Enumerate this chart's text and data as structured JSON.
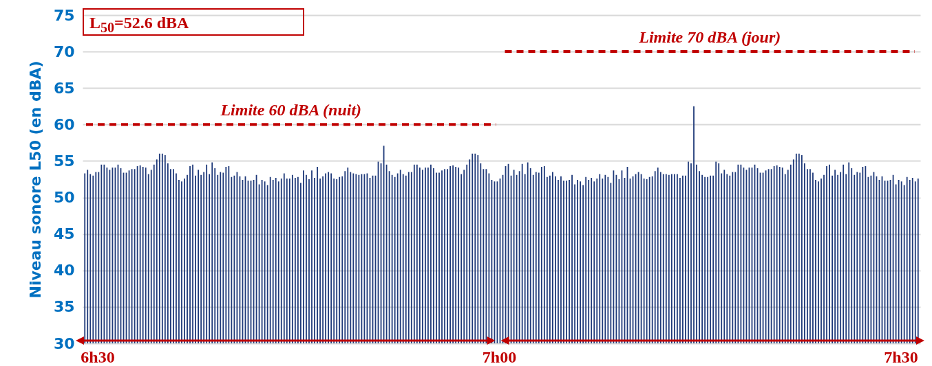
{
  "chart_data": {
    "type": "bar",
    "ylabel": "Niveau sonore L50 (en dBA)",
    "ylim": [
      30,
      75
    ],
    "yticks": [
      30,
      35,
      40,
      45,
      50,
      55,
      60,
      65,
      70,
      75
    ],
    "grid": "y",
    "color": "#1f3a7a",
    "categories": [
      null,
      null,
      null,
      null,
      null,
      null,
      null,
      null,
      null,
      null,
      null,
      null,
      null,
      null,
      null,
      null,
      null,
      null,
      null,
      null,
      null,
      null,
      null,
      null,
      null,
      null,
      null,
      null,
      null,
      null,
      null,
      null,
      null,
      null,
      null,
      null,
      null,
      null,
      null,
      null,
      null,
      null,
      null,
      null,
      null,
      null,
      null,
      null,
      null,
      null,
      null,
      null,
      null,
      null,
      null,
      null,
      null,
      null,
      null,
      null,
      null,
      null,
      null,
      null,
      null,
      null,
      null,
      null,
      null,
      null,
      null,
      null,
      null,
      null,
      null,
      null,
      null,
      null,
      null,
      null,
      null,
      null,
      null,
      null,
      null,
      null,
      null,
      null,
      null,
      null,
      null,
      null,
      null,
      null,
      null,
      null,
      null,
      null,
      null,
      null,
      null,
      null,
      null,
      null,
      null,
      null,
      null,
      null,
      null,
      null,
      null,
      null,
      null,
      null,
      null,
      null,
      null,
      null,
      null,
      null,
      null,
      null,
      null,
      null,
      null,
      null,
      null,
      null,
      null,
      null,
      null,
      null,
      null,
      null,
      null,
      null,
      null,
      null,
      null,
      null,
      null,
      null,
      null,
      null,
      null,
      null,
      null,
      null,
      null,
      null,
      null,
      null,
      null,
      null,
      null,
      null,
      null,
      null,
      null,
      null,
      null,
      null,
      null,
      null,
      null,
      null,
      null,
      null,
      null,
      null,
      null,
      null,
      null,
      null,
      null,
      null,
      null,
      null,
      null,
      null,
      null,
      null,
      null,
      null,
      null,
      null,
      null,
      null,
      null,
      null,
      null,
      null,
      null,
      null,
      null,
      null,
      null,
      null,
      null,
      null,
      null,
      null,
      null,
      null,
      null,
      null,
      null,
      null,
      null,
      null,
      null,
      null,
      null,
      null,
      null,
      null,
      null,
      null,
      null,
      null,
      null,
      null,
      null,
      null,
      null,
      null,
      null,
      null,
      null,
      null,
      null,
      null,
      null,
      null,
      null,
      null,
      null,
      null,
      null,
      null,
      null,
      null,
      null,
      null,
      null,
      null,
      null,
      null,
      null,
      null,
      null,
      null,
      null,
      null,
      null,
      null,
      null,
      null,
      null,
      null,
      null,
      null,
      null,
      null,
      null,
      null,
      null,
      null,
      null,
      null,
      null,
      null,
      null,
      null,
      null,
      null,
      null,
      null,
      null,
      null,
      null,
      null,
      null,
      null,
      null,
      null,
      null,
      null,
      null,
      null,
      null,
      null,
      null,
      null,
      null,
      null,
      null,
      null,
      null,
      null,
      null,
      null
    ],
    "values": [
      53.3,
      53.8,
      53.2,
      53.0,
      53.5,
      53.5,
      54.5,
      54.5,
      54.1,
      53.8,
      54.1,
      54.1,
      54.5,
      54.0,
      53.4,
      53.4,
      53.7,
      53.9,
      53.9,
      54.3,
      54.4,
      54.2,
      54.1,
      53.2,
      53.8,
      54.5,
      55.2,
      56.0,
      56.0,
      55.8,
      54.7,
      53.9,
      53.9,
      53.3,
      52.4,
      52.2,
      52.6,
      53.1,
      54.3,
      54.5,
      53.0,
      53.8,
      53.1,
      53.5,
      54.5,
      53.2,
      54.8,
      54.0,
      53.1,
      53.5,
      53.4,
      54.2,
      54.3,
      52.8,
      53.0,
      53.5,
      52.9,
      52.4,
      52.9,
      52.3,
      52.3,
      52.4,
      53.1,
      51.8,
      52.4,
      52.2,
      51.7,
      52.8,
      52.4,
      52.7,
      52.2,
      52.6,
      53.3,
      52.6,
      52.6,
      53.1,
      52.7,
      52.8,
      52.0,
      53.7,
      53.1,
      52.5,
      53.7,
      52.7,
      54.2,
      52.6,
      52.9,
      53.3,
      53.5,
      53.3,
      52.6,
      52.5,
      52.8,
      52.9,
      53.6,
      54.1,
      53.5,
      53.3,
      53.2,
      53.1,
      53.2,
      53.2,
      53.3,
      52.7,
      53.0,
      53.0,
      54.9,
      54.7,
      57.1,
      54.5,
      53.6,
      53.1,
      52.8,
      53.3,
      53.8,
      53.2,
      53.0,
      53.5,
      53.5,
      54.5,
      54.5,
      54.1,
      53.8,
      54.1,
      54.1,
      54.5,
      54.0,
      53.4,
      53.4,
      53.7,
      53.9,
      53.9,
      54.3,
      54.4,
      54.2,
      54.1,
      53.2,
      53.8,
      54.5,
      55.2,
      56.0,
      56.0,
      55.8,
      54.7,
      53.9,
      53.9,
      53.3,
      52.4,
      52.2,
      52.2,
      52.6,
      53.1,
      54.3,
      54.6,
      53.0,
      53.8,
      53.1,
      53.6,
      54.6,
      53.2,
      54.8,
      54.0,
      53.1,
      53.5,
      53.4,
      54.2,
      54.3,
      52.8,
      53.0,
      53.5,
      52.9,
      52.4,
      52.9,
      52.3,
      52.3,
      52.4,
      53.1,
      51.8,
      52.4,
      52.2,
      51.7,
      52.8,
      52.4,
      52.7,
      52.2,
      52.6,
      53.2,
      52.6,
      53.1,
      52.8,
      52.0,
      53.7,
      53.1,
      52.5,
      53.7,
      52.7,
      54.2,
      52.6,
      52.9,
      53.2,
      53.5,
      53.2,
      52.6,
      52.5,
      52.8,
      52.9,
      53.6,
      54.1,
      53.5,
      53.2,
      53.2,
      53.1,
      53.2,
      53.2,
      53.2,
      52.7,
      53.0,
      53.0,
      54.9,
      54.7,
      62.5,
      54.5,
      53.6,
      53.1,
      52.8,
      52.8,
      53.0,
      53.0,
      54.9,
      54.7,
      53.3,
      53.8,
      53.2,
      53.0,
      53.5,
      53.5,
      54.5,
      54.5,
      54.1,
      53.8,
      54.1,
      54.1,
      54.5,
      54.0,
      53.4,
      53.4,
      53.7,
      53.9,
      53.9,
      54.3,
      54.4,
      54.2,
      54.1,
      53.2,
      53.8,
      54.5,
      55.2,
      56.0,
      56.0,
      55.8,
      54.7,
      53.9,
      53.9,
      53.4,
      52.4,
      52.2,
      52.6,
      53.1,
      54.3,
      54.5,
      53.0,
      53.8,
      53.1,
      53.5,
      54.5,
      53.2,
      54.8,
      54.0,
      53.1,
      53.5,
      53.4,
      54.2,
      54.3,
      52.8,
      53.0,
      53.5,
      52.9,
      52.4,
      52.9,
      52.3,
      52.3,
      52.4,
      53.1,
      51.8,
      52.4,
      52.2,
      51.7,
      52.8,
      52.4,
      52.7,
      52.2,
      52.6
    ],
    "ref_lines": [
      {
        "axis": "y",
        "value": 60,
        "label": "Limite 60 dBA (nuit)",
        "color": "#c00000",
        "line_style": "dashed"
      },
      {
        "axis": "y",
        "value": 70,
        "label": "Limite 70 dBA (jour)",
        "color": "#c00000",
        "line_style": "dashed"
      }
    ],
    "annotations": [
      "L$_{50}$=52.6 dBA",
      "6h30",
      "7h00",
      "7h30"
    ]
  }
}
